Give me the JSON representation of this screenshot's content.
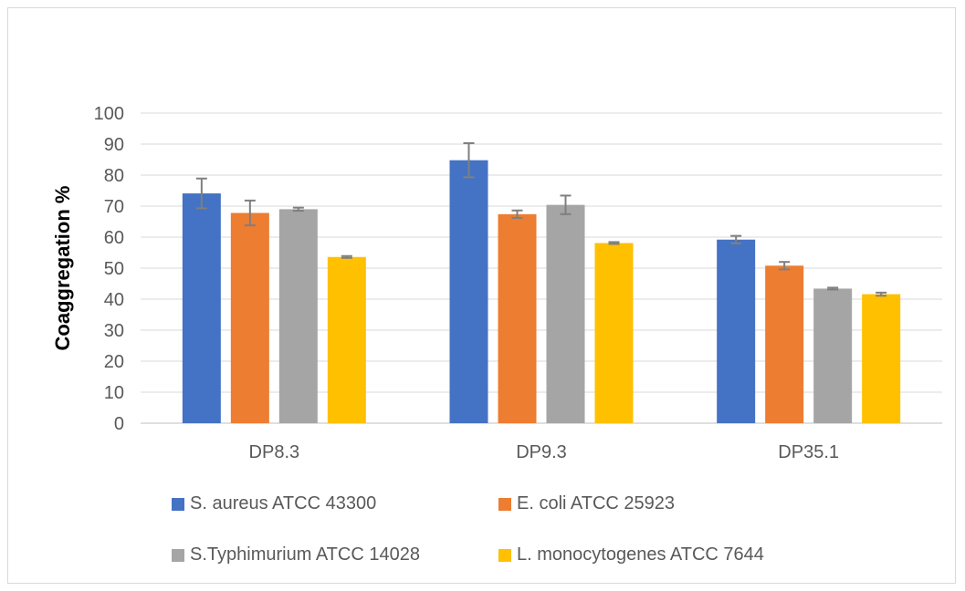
{
  "chart_data": {
    "type": "bar",
    "title": "",
    "xlabel": "",
    "ylabel": "Coaggregation %",
    "ylim": [
      0,
      100
    ],
    "yticks": [
      0,
      10,
      20,
      30,
      40,
      50,
      60,
      70,
      80,
      90,
      100
    ],
    "grid": true,
    "legend_position": "bottom",
    "categories": [
      "DP8.3",
      "DP9.3",
      "DP35.1"
    ],
    "series": [
      {
        "name": "S. aureus ATCC 43300",
        "color": "#4472C4",
        "values": [
          74.1,
          84.8,
          59.2
        ],
        "errors": [
          4.8,
          5.5,
          1.2
        ]
      },
      {
        "name": "E. coli ATCC 25923",
        "color": "#ED7D31",
        "values": [
          67.8,
          67.4,
          50.8
        ],
        "errors": [
          4.0,
          1.2,
          1.2
        ]
      },
      {
        "name": "S.Typhimurium ATCC 14028",
        "color": "#A5A5A5",
        "values": [
          69.0,
          70.4,
          43.4
        ],
        "errors": [
          0.5,
          3.0,
          0.3
        ]
      },
      {
        "name": "L. monocytogenes ATCC 7644",
        "color": "#FFC000",
        "values": [
          53.6,
          58.1,
          41.6
        ],
        "errors": [
          0.3,
          0.3,
          0.5
        ]
      }
    ]
  }
}
